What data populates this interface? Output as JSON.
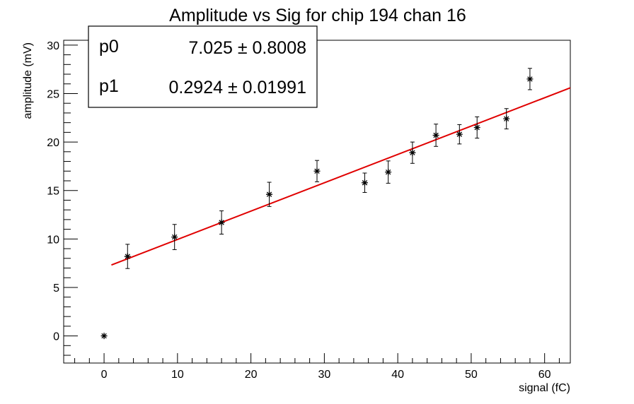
{
  "chart_data": {
    "type": "scatter",
    "title": "Amplitude vs Sig for chip 194 chan 16",
    "xlabel": "signal (fC)",
    "ylabel": "amplitude (mV)",
    "xlim": [
      -5.5,
      63.5
    ],
    "ylim": [
      -2.8,
      30.5
    ],
    "x_ticks": [
      0,
      10,
      20,
      30,
      40,
      50,
      60
    ],
    "y_ticks": [
      0,
      5,
      10,
      15,
      20,
      25,
      30
    ],
    "grid": false,
    "marker_color": "#000000",
    "fit_color": "#e00000",
    "points": [
      {
        "x": 0.0,
        "y": 0.0,
        "err": 0
      },
      {
        "x": 3.2,
        "y": 8.2,
        "err": 1.25
      },
      {
        "x": 9.6,
        "y": 10.2,
        "err": 1.3
      },
      {
        "x": 16.0,
        "y": 11.7,
        "err": 1.2
      },
      {
        "x": 22.5,
        "y": 14.6,
        "err": 1.25
      },
      {
        "x": 29.0,
        "y": 17.0,
        "err": 1.1
      },
      {
        "x": 35.5,
        "y": 15.8,
        "err": 1.0
      },
      {
        "x": 38.7,
        "y": 16.9,
        "err": 1.15
      },
      {
        "x": 42.0,
        "y": 18.9,
        "err": 1.1
      },
      {
        "x": 45.2,
        "y": 20.7,
        "err": 1.15
      },
      {
        "x": 48.4,
        "y": 20.8,
        "err": 1.0
      },
      {
        "x": 50.8,
        "y": 21.5,
        "err": 1.1
      },
      {
        "x": 54.8,
        "y": 22.4,
        "err": 1.05
      },
      {
        "x": 58.0,
        "y": 26.5,
        "err": 1.1
      }
    ],
    "fit": {
      "p0": 7.025,
      "p1": 0.2924,
      "x_start": 1.0,
      "x_end": 63.5
    },
    "stats": [
      {
        "name": "p0",
        "value": "7.025",
        "error": "0.8008"
      },
      {
        "name": "p1",
        "value": "0.2924",
        "error": "0.01991"
      }
    ]
  }
}
